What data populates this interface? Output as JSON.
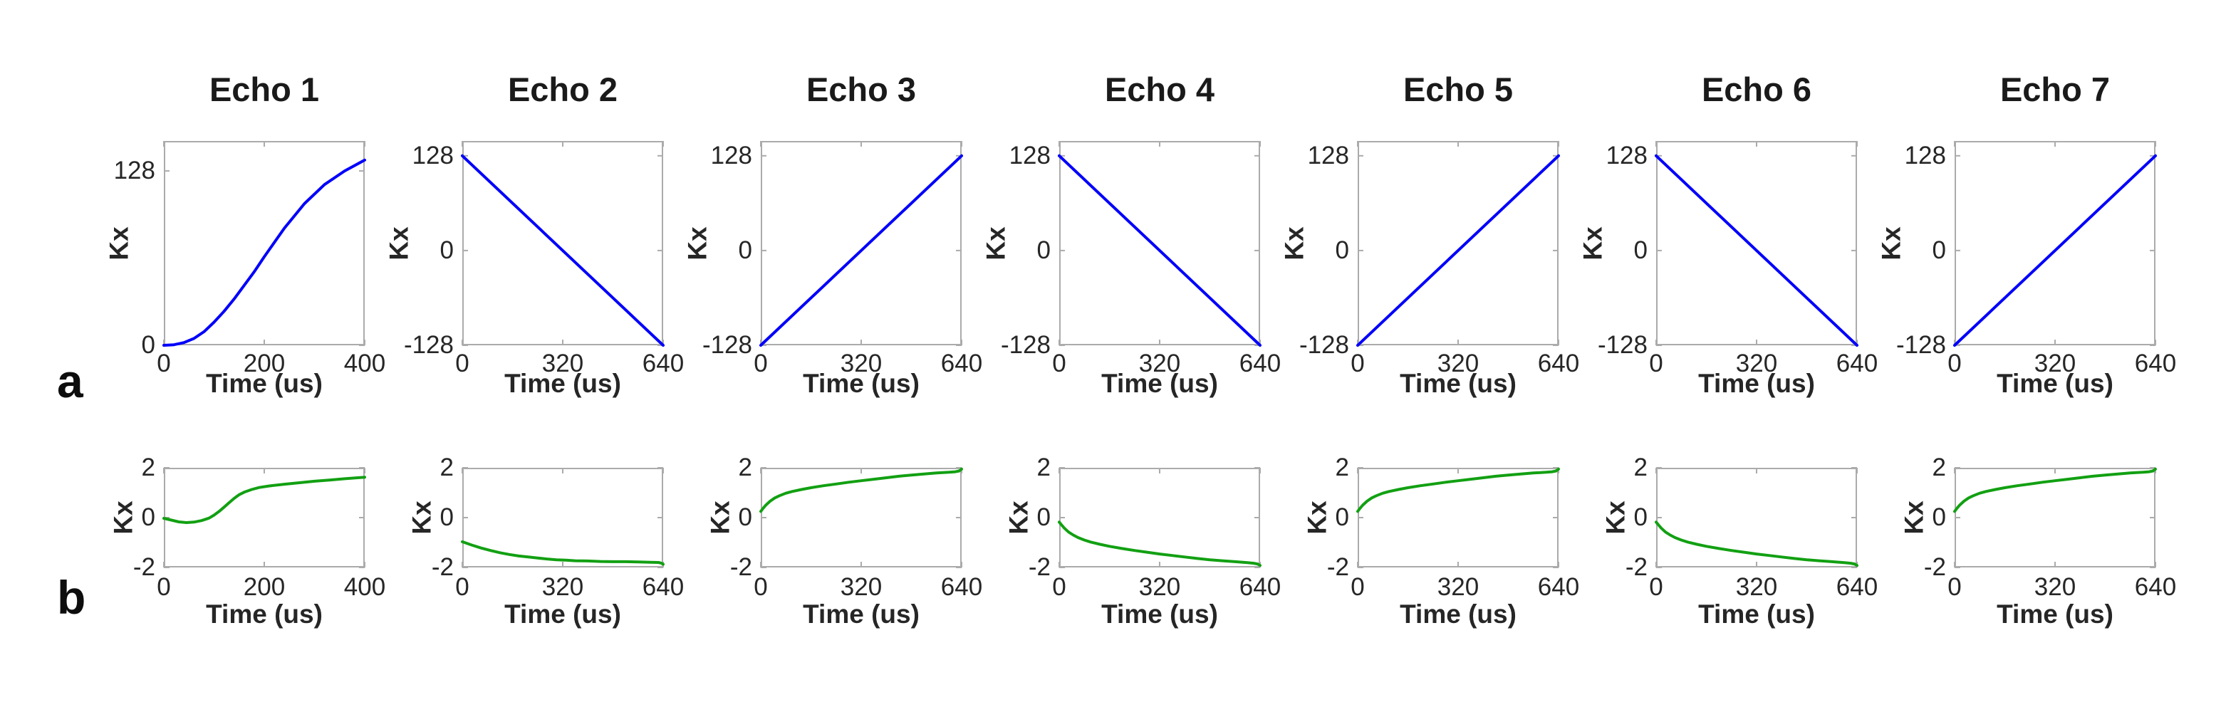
{
  "figure": {
    "background": "#ffffff",
    "panel_labels": [
      "a",
      "b"
    ]
  },
  "colors": {
    "row_a_line": "#0000FA",
    "row_b_line": "#12A012",
    "axis_box": "#ababab",
    "tick_text": "#262626",
    "title_text": "#1a1a1a"
  },
  "chart_data": [
    {
      "id": "a-echo-1",
      "row": "a",
      "col": 1,
      "type": "line",
      "title": "Echo 1",
      "xlabel": "Time (us)",
      "ylabel": "Kx",
      "xlim": [
        0,
        400
      ],
      "ylim": [
        0,
        150
      ],
      "xticks": [
        0,
        200,
        400
      ],
      "yticks": [
        0,
        128
      ],
      "grid": false,
      "line_color": "#0000FA",
      "points": [
        [
          0,
          0
        ],
        [
          20,
          0.4
        ],
        [
          40,
          2
        ],
        [
          60,
          5
        ],
        [
          80,
          10
        ],
        [
          100,
          17
        ],
        [
          120,
          25
        ],
        [
          140,
          34
        ],
        [
          160,
          44
        ],
        [
          180,
          54
        ],
        [
          200,
          65
        ],
        [
          240,
          86
        ],
        [
          280,
          104
        ],
        [
          320,
          118
        ],
        [
          360,
          128
        ],
        [
          400,
          136
        ]
      ]
    },
    {
      "id": "a-echo-2",
      "row": "a",
      "col": 2,
      "type": "line",
      "title": "Echo 2",
      "xlabel": "Time (us)",
      "ylabel": "Kx",
      "xlim": [
        0,
        640
      ],
      "ylim": [
        -128,
        148
      ],
      "xticks": [
        0,
        320,
        640
      ],
      "yticks": [
        -128,
        0,
        128
      ],
      "grid": false,
      "line_color": "#0000FA",
      "points": [
        [
          0,
          128
        ],
        [
          640,
          -128
        ]
      ]
    },
    {
      "id": "a-echo-3",
      "row": "a",
      "col": 3,
      "type": "line",
      "title": "Echo 3",
      "xlabel": "Time (us)",
      "ylabel": "Kx",
      "xlim": [
        0,
        640
      ],
      "ylim": [
        -128,
        148
      ],
      "xticks": [
        0,
        320,
        640
      ],
      "yticks": [
        -128,
        0,
        128
      ],
      "grid": false,
      "line_color": "#0000FA",
      "points": [
        [
          0,
          -128
        ],
        [
          640,
          128
        ]
      ]
    },
    {
      "id": "a-echo-4",
      "row": "a",
      "col": 4,
      "type": "line",
      "title": "Echo 4",
      "xlabel": "Time (us)",
      "ylabel": "Kx",
      "xlim": [
        0,
        640
      ],
      "ylim": [
        -128,
        148
      ],
      "xticks": [
        0,
        320,
        640
      ],
      "yticks": [
        -128,
        0,
        128
      ],
      "grid": false,
      "line_color": "#0000FA",
      "points": [
        [
          0,
          128
        ],
        [
          640,
          -128
        ]
      ]
    },
    {
      "id": "a-echo-5",
      "row": "a",
      "col": 5,
      "type": "line",
      "title": "Echo 5",
      "xlabel": "Time (us)",
      "ylabel": "Kx",
      "xlim": [
        0,
        640
      ],
      "ylim": [
        -128,
        148
      ],
      "xticks": [
        0,
        320,
        640
      ],
      "yticks": [
        -128,
        0,
        128
      ],
      "grid": false,
      "line_color": "#0000FA",
      "points": [
        [
          0,
          -128
        ],
        [
          640,
          128
        ]
      ]
    },
    {
      "id": "a-echo-6",
      "row": "a",
      "col": 6,
      "type": "line",
      "title": "Echo 6",
      "xlabel": "Time (us)",
      "ylabel": "Kx",
      "xlim": [
        0,
        640
      ],
      "ylim": [
        -128,
        148
      ],
      "xticks": [
        0,
        320,
        640
      ],
      "yticks": [
        -128,
        0,
        128
      ],
      "grid": false,
      "line_color": "#0000FA",
      "points": [
        [
          0,
          128
        ],
        [
          640,
          -128
        ]
      ]
    },
    {
      "id": "a-echo-7",
      "row": "a",
      "col": 7,
      "type": "line",
      "title": "Echo 7",
      "xlabel": "Time (us)",
      "ylabel": "Kx",
      "xlim": [
        0,
        640
      ],
      "ylim": [
        -128,
        148
      ],
      "xticks": [
        0,
        320,
        640
      ],
      "yticks": [
        -128,
        0,
        128
      ],
      "grid": false,
      "line_color": "#0000FA",
      "points": [
        [
          0,
          -128
        ],
        [
          640,
          128
        ]
      ]
    },
    {
      "id": "b-echo-1",
      "row": "b",
      "col": 1,
      "type": "line",
      "title": null,
      "xlabel": "Time (us)",
      "ylabel": "Kx",
      "xlim": [
        0,
        400
      ],
      "ylim": [
        -2,
        2
      ],
      "xticks": [
        0,
        200,
        400
      ],
      "yticks": [
        -2,
        0,
        2
      ],
      "grid": false,
      "line_color": "#12A012",
      "points": [
        [
          0,
          -0.03
        ],
        [
          15,
          -0.1
        ],
        [
          30,
          -0.17
        ],
        [
          45,
          -0.2
        ],
        [
          60,
          -0.18
        ],
        [
          75,
          -0.12
        ],
        [
          90,
          -0.02
        ],
        [
          100,
          0.1
        ],
        [
          110,
          0.25
        ],
        [
          120,
          0.42
        ],
        [
          130,
          0.6
        ],
        [
          140,
          0.77
        ],
        [
          150,
          0.92
        ],
        [
          160,
          1.02
        ],
        [
          175,
          1.13
        ],
        [
          190,
          1.21
        ],
        [
          210,
          1.27
        ],
        [
          240,
          1.34
        ],
        [
          270,
          1.4
        ],
        [
          300,
          1.46
        ],
        [
          330,
          1.51
        ],
        [
          360,
          1.56
        ],
        [
          400,
          1.62
        ]
      ]
    },
    {
      "id": "b-echo-2",
      "row": "b",
      "col": 2,
      "type": "line",
      "title": null,
      "xlabel": "Time (us)",
      "ylabel": "Kx",
      "xlim": [
        0,
        640
      ],
      "ylim": [
        -2,
        2
      ],
      "xticks": [
        0,
        320,
        640
      ],
      "yticks": [
        -2,
        0,
        2
      ],
      "grid": false,
      "line_color": "#12A012",
      "points": [
        [
          0,
          -0.97
        ],
        [
          30,
          -1.1
        ],
        [
          60,
          -1.22
        ],
        [
          90,
          -1.32
        ],
        [
          120,
          -1.41
        ],
        [
          150,
          -1.48
        ],
        [
          180,
          -1.54
        ],
        [
          210,
          -1.58
        ],
        [
          240,
          -1.62
        ],
        [
          270,
          -1.66
        ],
        [
          300,
          -1.69
        ],
        [
          330,
          -1.71
        ],
        [
          360,
          -1.73
        ],
        [
          400,
          -1.74
        ],
        [
          440,
          -1.76
        ],
        [
          480,
          -1.77
        ],
        [
          520,
          -1.77
        ],
        [
          560,
          -1.78
        ],
        [
          600,
          -1.79
        ],
        [
          625,
          -1.8
        ],
        [
          635,
          -1.83
        ],
        [
          640,
          -1.87
        ]
      ]
    },
    {
      "id": "b-echo-3",
      "row": "b",
      "col": 3,
      "type": "line",
      "title": null,
      "xlabel": "Time (us)",
      "ylabel": "Kx",
      "xlim": [
        0,
        640
      ],
      "ylim": [
        -2,
        2
      ],
      "xticks": [
        0,
        320,
        640
      ],
      "yticks": [
        -2,
        0,
        2
      ],
      "grid": false,
      "line_color": "#12A012",
      "points": [
        [
          0,
          0.25
        ],
        [
          8,
          0.38
        ],
        [
          16,
          0.5
        ],
        [
          30,
          0.66
        ],
        [
          45,
          0.79
        ],
        [
          60,
          0.88
        ],
        [
          80,
          0.98
        ],
        [
          100,
          1.05
        ],
        [
          130,
          1.13
        ],
        [
          160,
          1.2
        ],
        [
          200,
          1.28
        ],
        [
          240,
          1.35
        ],
        [
          280,
          1.42
        ],
        [
          320,
          1.48
        ],
        [
          360,
          1.54
        ],
        [
          400,
          1.6
        ],
        [
          440,
          1.66
        ],
        [
          480,
          1.71
        ],
        [
          520,
          1.75
        ],
        [
          560,
          1.79
        ],
        [
          600,
          1.82
        ],
        [
          620,
          1.84
        ],
        [
          632,
          1.87
        ],
        [
          640,
          1.95
        ]
      ]
    },
    {
      "id": "b-echo-4",
      "row": "b",
      "col": 4,
      "type": "line",
      "title": null,
      "xlabel": "Time (us)",
      "ylabel": "Kx",
      "xlim": [
        0,
        640
      ],
      "ylim": [
        -2,
        2
      ],
      "xticks": [
        0,
        320,
        640
      ],
      "yticks": [
        -2,
        0,
        2
      ],
      "grid": false,
      "line_color": "#12A012",
      "points": [
        [
          0,
          -0.18
        ],
        [
          8,
          -0.3
        ],
        [
          16,
          -0.42
        ],
        [
          30,
          -0.58
        ],
        [
          45,
          -0.7
        ],
        [
          60,
          -0.8
        ],
        [
          80,
          -0.9
        ],
        [
          100,
          -0.98
        ],
        [
          130,
          -1.07
        ],
        [
          160,
          -1.15
        ],
        [
          200,
          -1.24
        ],
        [
          240,
          -1.32
        ],
        [
          280,
          -1.39
        ],
        [
          320,
          -1.46
        ],
        [
          360,
          -1.52
        ],
        [
          400,
          -1.58
        ],
        [
          440,
          -1.64
        ],
        [
          480,
          -1.69
        ],
        [
          520,
          -1.73
        ],
        [
          560,
          -1.77
        ],
        [
          600,
          -1.81
        ],
        [
          620,
          -1.83
        ],
        [
          632,
          -1.86
        ],
        [
          640,
          -1.92
        ]
      ]
    },
    {
      "id": "b-echo-5",
      "row": "b",
      "col": 5,
      "type": "line",
      "title": null,
      "xlabel": "Time (us)",
      "ylabel": "Kx",
      "xlim": [
        0,
        640
      ],
      "ylim": [
        -2,
        2
      ],
      "xticks": [
        0,
        320,
        640
      ],
      "yticks": [
        -2,
        0,
        2
      ],
      "grid": false,
      "line_color": "#12A012",
      "points": [
        [
          0,
          0.25
        ],
        [
          8,
          0.38
        ],
        [
          16,
          0.5
        ],
        [
          30,
          0.66
        ],
        [
          45,
          0.79
        ],
        [
          60,
          0.88
        ],
        [
          80,
          0.98
        ],
        [
          100,
          1.05
        ],
        [
          130,
          1.13
        ],
        [
          160,
          1.2
        ],
        [
          200,
          1.28
        ],
        [
          240,
          1.35
        ],
        [
          280,
          1.42
        ],
        [
          320,
          1.48
        ],
        [
          360,
          1.54
        ],
        [
          400,
          1.6
        ],
        [
          440,
          1.66
        ],
        [
          480,
          1.71
        ],
        [
          520,
          1.75
        ],
        [
          560,
          1.79
        ],
        [
          600,
          1.82
        ],
        [
          620,
          1.84
        ],
        [
          632,
          1.87
        ],
        [
          640,
          1.95
        ]
      ]
    },
    {
      "id": "b-echo-6",
      "row": "b",
      "col": 6,
      "type": "line",
      "title": null,
      "xlabel": "Time (us)",
      "ylabel": "Kx",
      "xlim": [
        0,
        640
      ],
      "ylim": [
        -2,
        2
      ],
      "xticks": [
        0,
        320,
        640
      ],
      "yticks": [
        -2,
        0,
        2
      ],
      "grid": false,
      "line_color": "#12A012",
      "points": [
        [
          0,
          -0.18
        ],
        [
          8,
          -0.3
        ],
        [
          16,
          -0.42
        ],
        [
          30,
          -0.58
        ],
        [
          45,
          -0.7
        ],
        [
          60,
          -0.8
        ],
        [
          80,
          -0.9
        ],
        [
          100,
          -0.98
        ],
        [
          130,
          -1.07
        ],
        [
          160,
          -1.15
        ],
        [
          200,
          -1.24
        ],
        [
          240,
          -1.32
        ],
        [
          280,
          -1.39
        ],
        [
          320,
          -1.46
        ],
        [
          360,
          -1.52
        ],
        [
          400,
          -1.58
        ],
        [
          440,
          -1.64
        ],
        [
          480,
          -1.69
        ],
        [
          520,
          -1.73
        ],
        [
          560,
          -1.77
        ],
        [
          600,
          -1.81
        ],
        [
          620,
          -1.83
        ],
        [
          632,
          -1.86
        ],
        [
          640,
          -1.92
        ]
      ]
    },
    {
      "id": "b-echo-7",
      "row": "b",
      "col": 7,
      "type": "line",
      "title": null,
      "xlabel": "Time (us)",
      "ylabel": "Kx",
      "xlim": [
        0,
        640
      ],
      "ylim": [
        -2,
        2
      ],
      "xticks": [
        0,
        320,
        640
      ],
      "yticks": [
        -2,
        0,
        2
      ],
      "grid": false,
      "line_color": "#12A012",
      "points": [
        [
          0,
          0.25
        ],
        [
          8,
          0.38
        ],
        [
          16,
          0.5
        ],
        [
          30,
          0.66
        ],
        [
          45,
          0.79
        ],
        [
          60,
          0.88
        ],
        [
          80,
          0.98
        ],
        [
          100,
          1.05
        ],
        [
          130,
          1.13
        ],
        [
          160,
          1.2
        ],
        [
          200,
          1.28
        ],
        [
          240,
          1.35
        ],
        [
          280,
          1.42
        ],
        [
          320,
          1.48
        ],
        [
          360,
          1.54
        ],
        [
          400,
          1.6
        ],
        [
          440,
          1.66
        ],
        [
          480,
          1.71
        ],
        [
          520,
          1.75
        ],
        [
          560,
          1.79
        ],
        [
          600,
          1.82
        ],
        [
          620,
          1.84
        ],
        [
          632,
          1.87
        ],
        [
          640,
          1.95
        ]
      ]
    }
  ]
}
